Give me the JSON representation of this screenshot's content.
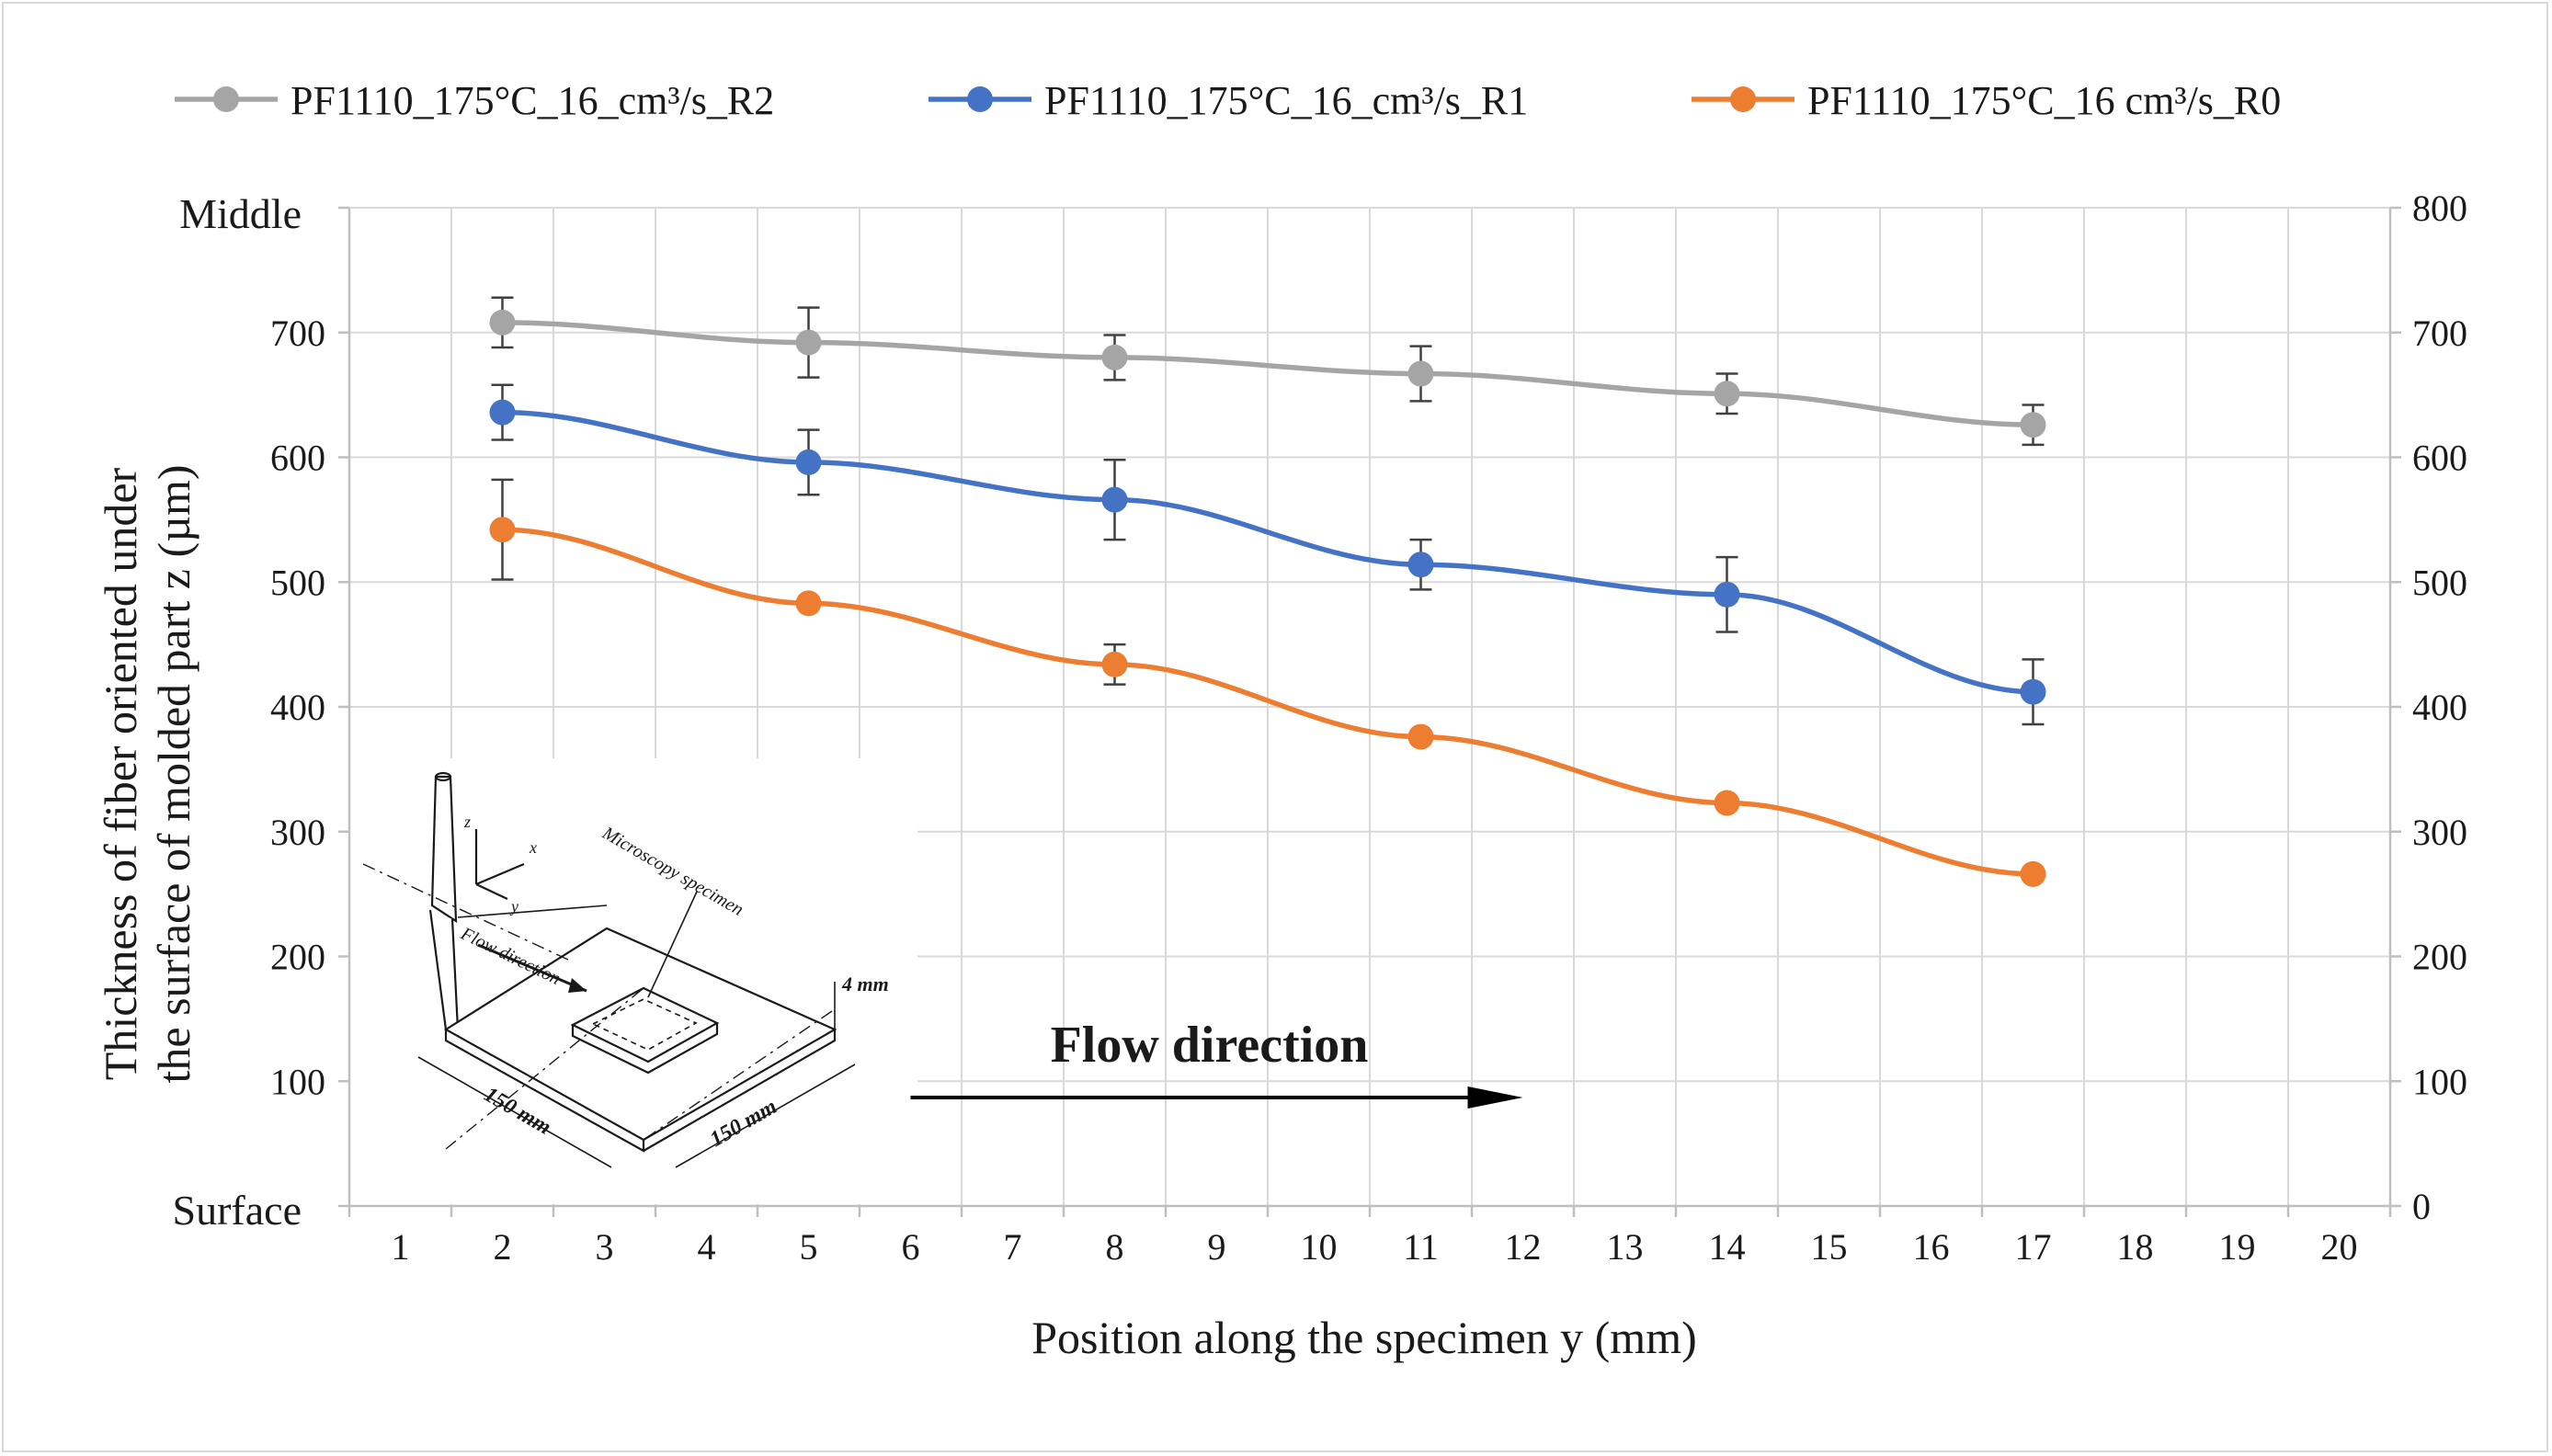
{
  "chart_data": {
    "type": "line",
    "title": "",
    "xlabel": "Position along the specimen y (mm)",
    "ylabel_lines": [
      "Thickness  of fiber oriented under",
      "the surface of molded part  z (µm)"
    ],
    "y_top_label": "Middle",
    "y_bottom_label": "Surface",
    "x_ticks": [
      "1",
      "2",
      "3",
      "4",
      "5",
      "6",
      "7",
      "8",
      "9",
      "10",
      "11",
      "12",
      "13",
      "14",
      "15",
      "16",
      "17",
      "18",
      "19",
      "20"
    ],
    "ylim": [
      0,
      800
    ],
    "y_ticks_left": [
      "100",
      "200",
      "300",
      "400",
      "500",
      "600",
      "700"
    ],
    "y_ticks_right": [
      "0",
      "100",
      "200",
      "300",
      "400",
      "500",
      "600",
      "700",
      "800"
    ],
    "grid": true,
    "legend_position": "top",
    "x_category_positions": [
      2,
      5,
      8,
      11,
      14,
      17
    ],
    "series": [
      {
        "name": "PF1110_175°C_16_cm³/s_R2",
        "color": "#a5a5a5",
        "values": [
          708,
          692,
          680,
          667,
          651,
          626
        ],
        "errors": [
          20,
          28,
          18,
          22,
          16,
          16
        ]
      },
      {
        "name": "PF1110_175°C_16_cm³/s_R1",
        "color": "#4472c4",
        "values": [
          636,
          596,
          566,
          514,
          490,
          412
        ],
        "errors": [
          22,
          26,
          32,
          20,
          30,
          26
        ]
      },
      {
        "name": "PF1110_175°C_16 cm³/s_R0",
        "color": "#ed7d31",
        "values": [
          542,
          483,
          434,
          376,
          323,
          266
        ],
        "errors": [
          40,
          0,
          16,
          0,
          0,
          0
        ]
      }
    ],
    "annotation": {
      "text": "Flow direction",
      "arrow_from_x": 6,
      "arrow_to_x": 12
    },
    "inset": {
      "labels": {
        "microscopy": "Microscopy specimen",
        "flow": "Flow direction",
        "thickness": "4 mm",
        "dim_left": "150 mm",
        "dim_right": "150 mm",
        "axis_z": "z",
        "axis_x": "x",
        "axis_y": "y"
      }
    }
  }
}
